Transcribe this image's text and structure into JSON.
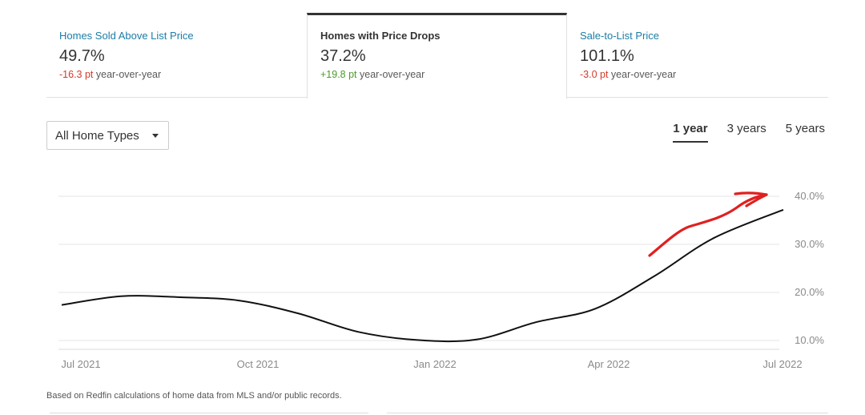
{
  "cards": [
    {
      "title": "Homes Sold Above List Price",
      "value": "49.7%",
      "change": "-16.3 pt",
      "change_suffix": " year-over-year",
      "change_color": "#d43b2b"
    },
    {
      "title": "Homes with Price Drops",
      "value": "37.2%",
      "change": "+19.8 pt",
      "change_suffix": " year-over-year",
      "change_color": "#4c9a2a"
    },
    {
      "title": "Sale-to-List Price",
      "value": "101.1%",
      "change": "-3.0 pt",
      "change_suffix": " year-over-year",
      "change_color": "#d43b2b"
    }
  ],
  "filter": {
    "selected": "All Home Types"
  },
  "ranges": [
    "1 year",
    "3 years",
    "5 years"
  ],
  "active_range": "1 year",
  "footnote": "Based on Redfin calculations of home data from MLS and/or public records.",
  "annotation": {
    "type": "hand-drawn arrow",
    "color": "#e02020"
  },
  "chart_data": {
    "type": "line",
    "title": "",
    "xlabel": "",
    "ylabel": "",
    "x_tick_labels": [
      "Jul 2021",
      "Oct 2021",
      "Jan 2022",
      "Apr 2022",
      "Jul 2022"
    ],
    "y_tick_labels": [
      "10.0%",
      "20.0%",
      "30.0%",
      "40.0%"
    ],
    "ylim": [
      10,
      40
    ],
    "grid": true,
    "line_color": "#111111",
    "series": [
      {
        "x": [
          "2021-07",
          "2021-08",
          "2021-09",
          "2021-10",
          "2021-11",
          "2021-12",
          "2022-01",
          "2022-02",
          "2022-03",
          "2022-04",
          "2022-05",
          "2022-06",
          "2022-07"
        ],
        "values": [
          17.4,
          19.2,
          19.0,
          18.3,
          15.6,
          11.8,
          10.1,
          10.2,
          13.8,
          16.6,
          23.4,
          31.3,
          37.2
        ]
      }
    ]
  }
}
